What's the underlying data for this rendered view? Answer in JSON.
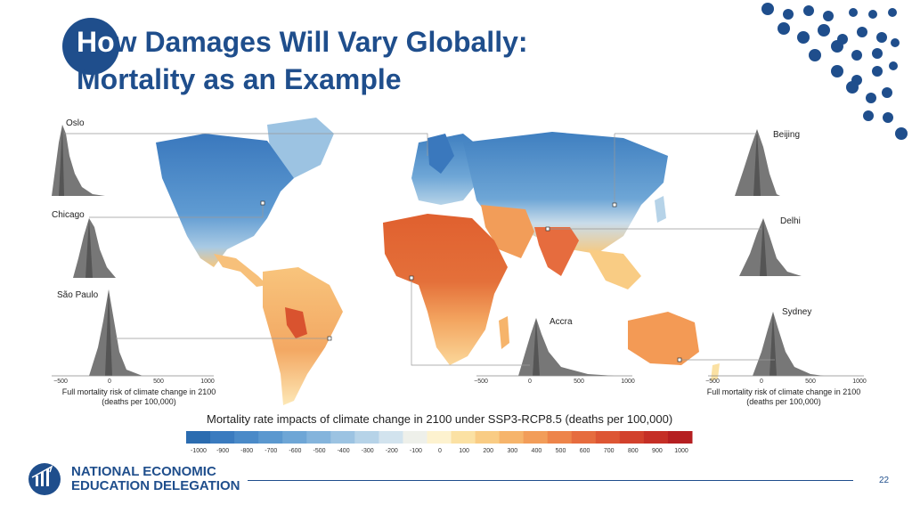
{
  "slide": {
    "title_line1_ho": "Ho",
    "title_line1_rest": "w Damages Will Vary Globally:",
    "title_line2": "Mortality as an Example",
    "page_number": "22"
  },
  "cities": {
    "oslo": "Oslo",
    "chicago": "Chicago",
    "sao_paulo": "São Paulo",
    "beijing": "Beijing",
    "delhi": "Delhi",
    "accra": "Accra",
    "sydney": "Sydney"
  },
  "axes": {
    "ticks": [
      "−500",
      "0",
      "500",
      "1000"
    ],
    "caption_line1": "Full mortality risk of climate change in 2100",
    "caption_line2": "(deaths per 100,000)"
  },
  "colorbar": {
    "title": "Mortality rate impacts of climate change in 2100 under SSP3-RCP8.5 (deaths per 100,000)",
    "ticks": [
      "-1000",
      "-900",
      "-800",
      "-700",
      "-600",
      "-500",
      "-400",
      "-300",
      "-200",
      "-100",
      "0",
      "100",
      "200",
      "300",
      "400",
      "500",
      "600",
      "700",
      "800",
      "900",
      "1000"
    ],
    "colors": [
      "#2b6cb0",
      "#3a7bbf",
      "#4a8ac8",
      "#5b98cf",
      "#6ea6d6",
      "#84b4dc",
      "#9cc3e2",
      "#b6d3e8",
      "#d2e3ee",
      "#eef0ea",
      "#fdf2cf",
      "#fbe1a3",
      "#f9cc84",
      "#f6b46b",
      "#f29d59",
      "#ed844a",
      "#e66c3e",
      "#dd5634",
      "#d2412c",
      "#c52f26",
      "#b51f21"
    ]
  },
  "logo": {
    "line1": "NATIONAL ECONOMIC",
    "line2": "EDUCATION DELEGATION"
  },
  "colors": {
    "brand": "#1f4e8c",
    "map_cold": "#4a8ac8",
    "map_hot": "#d2412c",
    "dist_grey": "#777777"
  }
}
